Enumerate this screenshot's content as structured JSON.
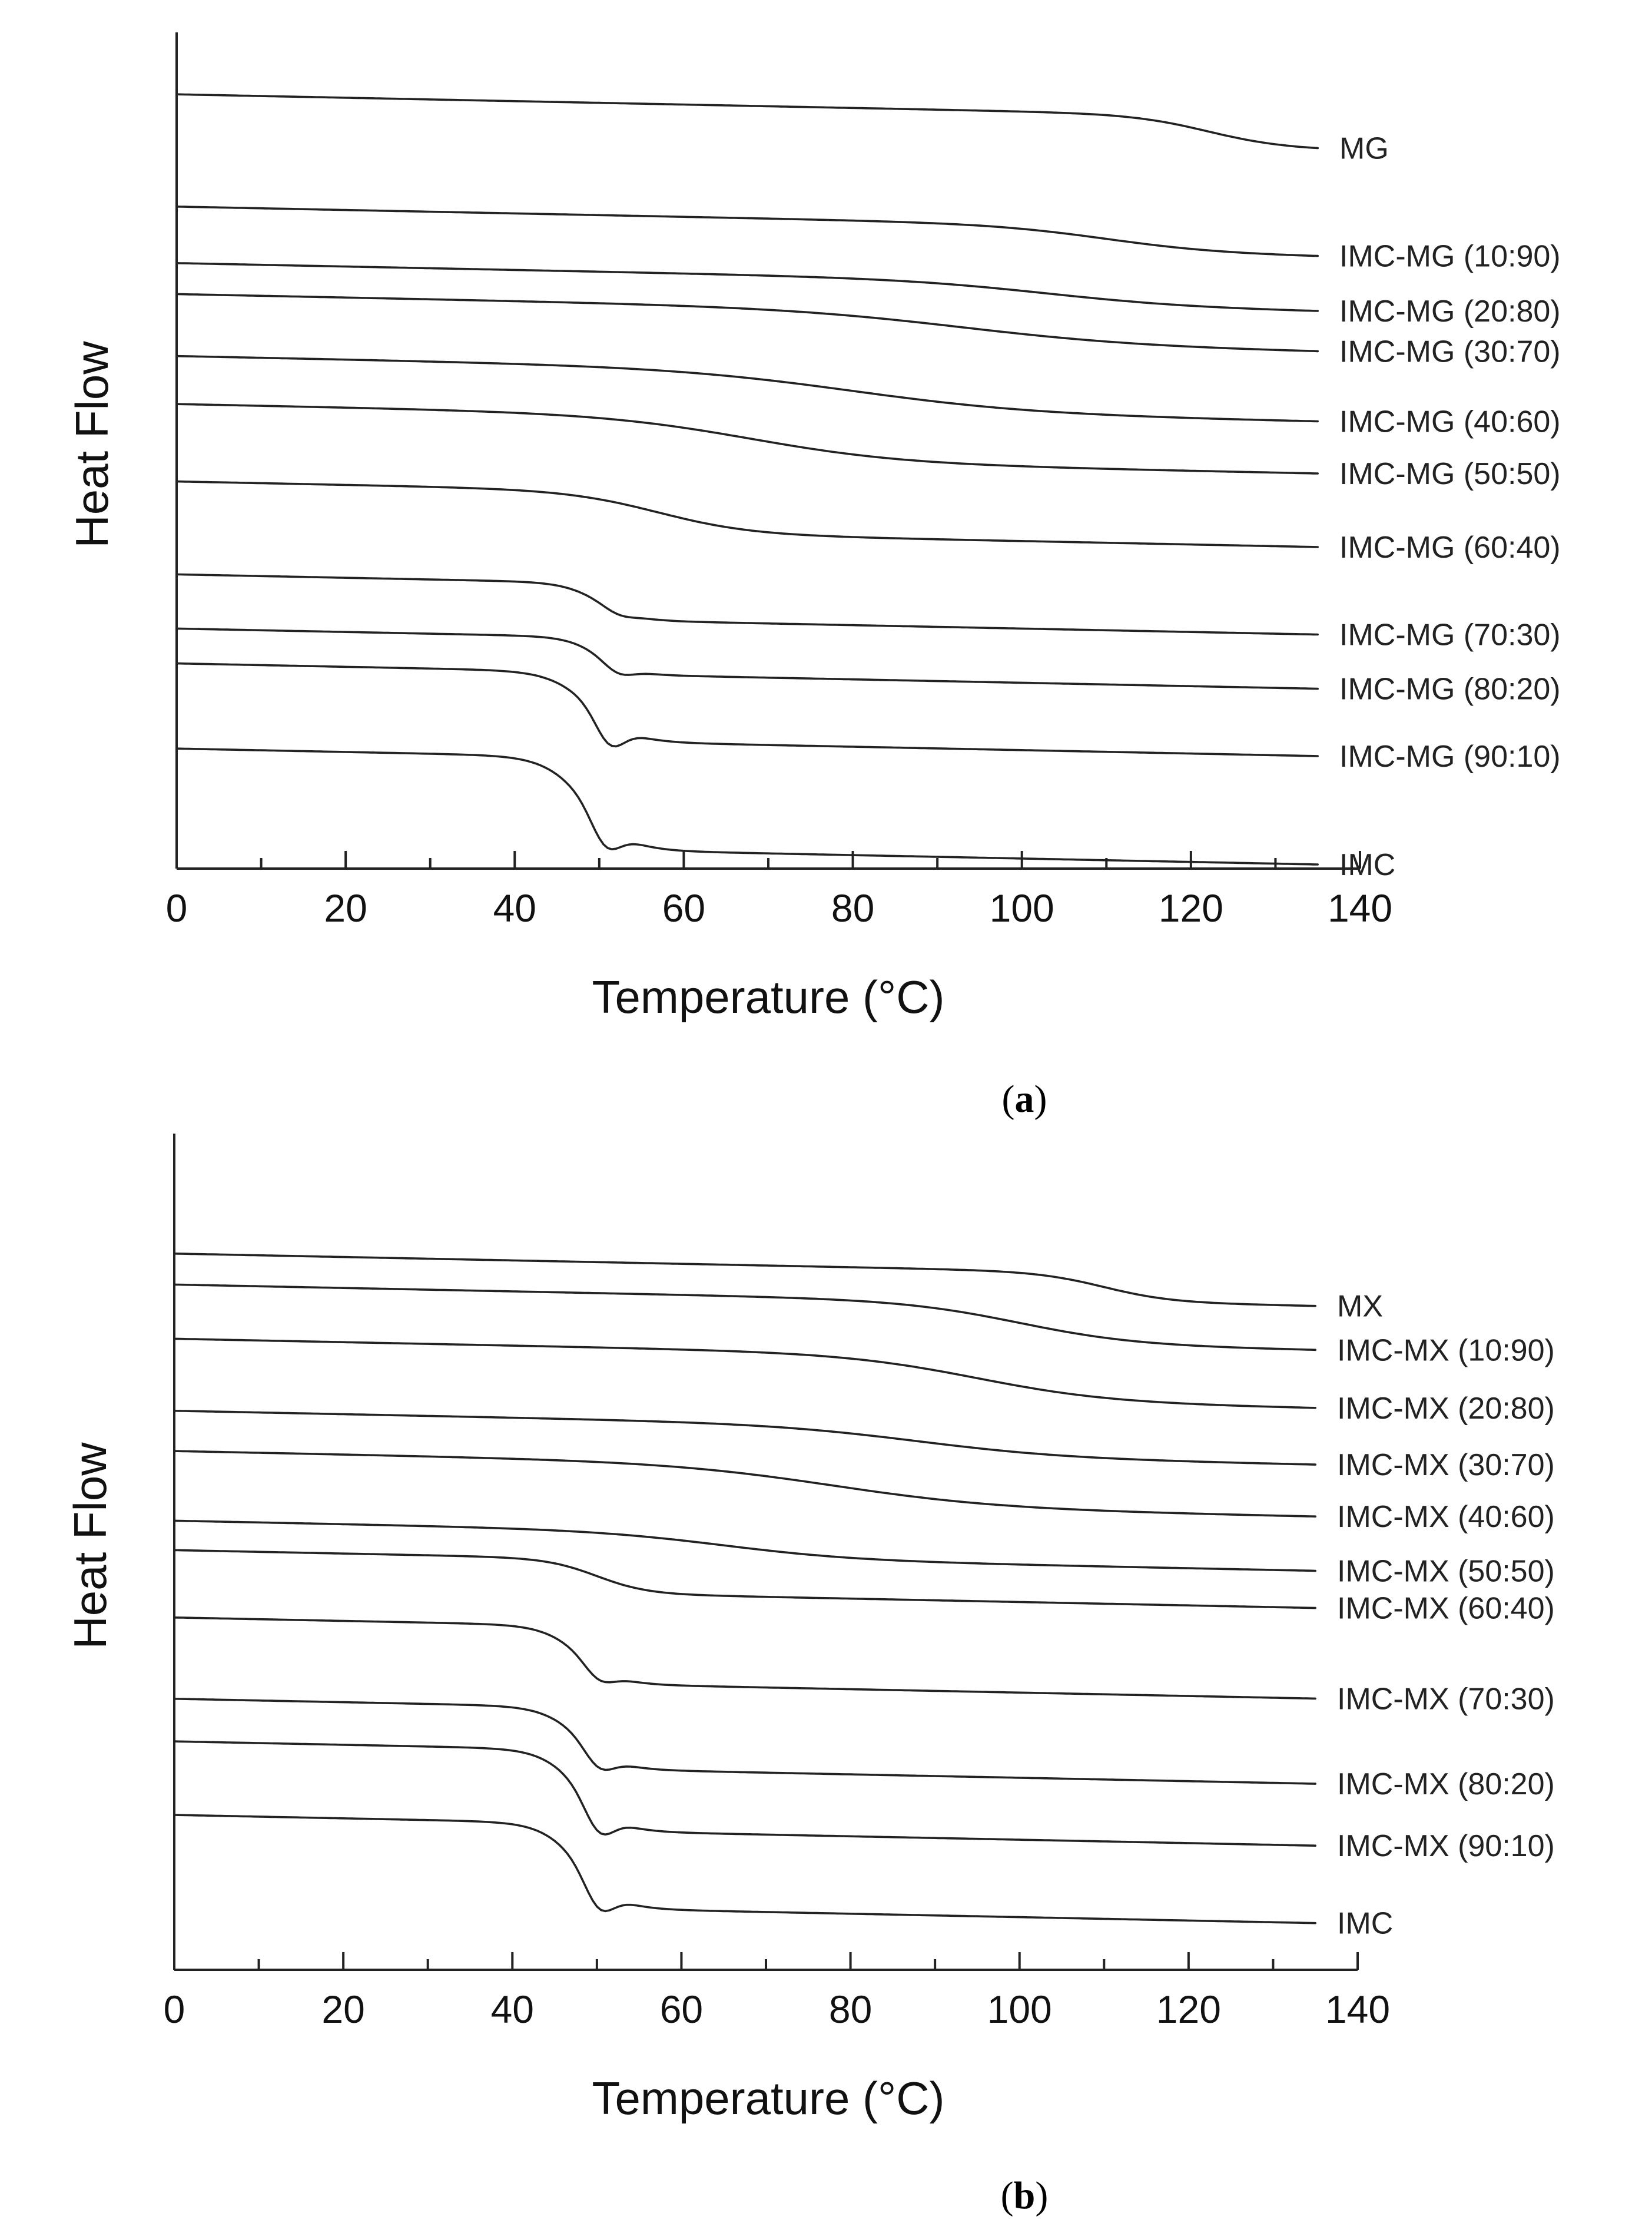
{
  "chart_data": [
    {
      "type": "line",
      "panel": "a",
      "caption_letter": "a",
      "xlabel": "Temperature (°C)",
      "ylabel": "Heat Flow",
      "xlim": [
        0,
        140
      ],
      "x_ticks": [
        0,
        20,
        40,
        60,
        80,
        100,
        120,
        140
      ],
      "series": [
        {
          "name": "MG",
          "baseline": 11.0,
          "glass_transition": {
            "temp": 122,
            "step": 0.42,
            "width": 4.5
          }
        },
        {
          "name": "IMC-MG (10:90)",
          "baseline": 9.55,
          "glass_transition": {
            "temp": 110,
            "step": 0.35,
            "width": 7
          }
        },
        {
          "name": "IMC-MG (20:80)",
          "baseline": 8.82,
          "glass_transition": {
            "temp": 103,
            "step": 0.33,
            "width": 9
          }
        },
        {
          "name": "IMC-MG (30:70)",
          "baseline": 8.42,
          "glass_transition": {
            "temp": 93,
            "step": 0.45,
            "width": 11
          }
        },
        {
          "name": "IMC-MG (40:60)",
          "baseline": 7.62,
          "glass_transition": {
            "temp": 80,
            "step": 0.55,
            "width": 11
          }
        },
        {
          "name": "IMC-MG (50:50)",
          "baseline": 7.0,
          "glass_transition": {
            "temp": 68,
            "step": 0.6,
            "width": 9
          }
        },
        {
          "name": "IMC-MG (60:40)",
          "baseline": 6.0,
          "glass_transition": {
            "temp": 57,
            "step": 0.55,
            "width": 5.5
          }
        },
        {
          "name": "IMC-MG (70:30)",
          "baseline": 4.8,
          "glass_transition": {
            "temp": 50,
            "step": 0.48,
            "width": 2.2
          },
          "endotherm_depth": 0.05
        },
        {
          "name": "IMC-MG (80:20)",
          "baseline": 4.1,
          "glass_transition": {
            "temp": 50,
            "step": 0.48,
            "width": 2
          },
          "endotherm_depth": 0.1
        },
        {
          "name": "IMC-MG (90:10)",
          "baseline": 3.65,
          "glass_transition": {
            "temp": 49,
            "step": 0.9,
            "width": 2.5
          },
          "endotherm_depth": 0.3
        },
        {
          "name": "IMC",
          "baseline": 2.55,
          "glass_transition": {
            "temp": 48.5,
            "step": 1.2,
            "width": 2.5
          },
          "endotherm_depth": 0.3
        }
      ]
    },
    {
      "type": "line",
      "panel": "b",
      "caption_letter": "b",
      "xlabel": "Temperature (°C)",
      "ylabel": "Heat Flow",
      "xlim": [
        0,
        140
      ],
      "x_ticks": [
        0,
        20,
        40,
        60,
        80,
        100,
        120,
        140
      ],
      "series": [
        {
          "name": "MX",
          "baseline": 10.25,
          "glass_transition": {
            "temp": 110,
            "step": 0.38,
            "width": 4
          }
        },
        {
          "name": "IMC-MX (10:90)",
          "baseline": 9.85,
          "glass_transition": {
            "temp": 100,
            "step": 0.55,
            "width": 7
          }
        },
        {
          "name": "IMC-MX (20:80)",
          "baseline": 9.15,
          "glass_transition": {
            "temp": 95,
            "step": 0.6,
            "width": 8
          }
        },
        {
          "name": "IMC-MX (30:70)",
          "baseline": 8.22,
          "glass_transition": {
            "temp": 88,
            "step": 0.4,
            "width": 9
          }
        },
        {
          "name": "IMC-MX (40:60)",
          "baseline": 7.7,
          "glass_transition": {
            "temp": 78,
            "step": 0.55,
            "width": 10
          }
        },
        {
          "name": "IMC-MX (50:50)",
          "baseline": 6.8,
          "glass_transition": {
            "temp": 65,
            "step": 0.35,
            "width": 8
          }
        },
        {
          "name": "IMC-MX (60:40)",
          "baseline": 6.42,
          "glass_transition": {
            "temp": 50,
            "step": 0.45,
            "width": 3
          }
        },
        {
          "name": "IMC-MX (70:30)",
          "baseline": 5.55,
          "glass_transition": {
            "temp": 48,
            "step": 0.75,
            "width": 2.3
          },
          "endotherm_depth": 0.15
        },
        {
          "name": "IMC-MX (80:20)",
          "baseline": 4.5,
          "glass_transition": {
            "temp": 48,
            "step": 0.8,
            "width": 2.3
          },
          "endotherm_depth": 0.2
        },
        {
          "name": "IMC-MX (90:10)",
          "baseline": 3.95,
          "glass_transition": {
            "temp": 48,
            "step": 1.05,
            "width": 2.3
          },
          "endotherm_depth": 0.3
        },
        {
          "name": "IMC",
          "baseline": 3.0,
          "glass_transition": {
            "temp": 48,
            "step": 1.1,
            "width": 2.3
          },
          "endotherm_depth": 0.3
        }
      ]
    }
  ]
}
